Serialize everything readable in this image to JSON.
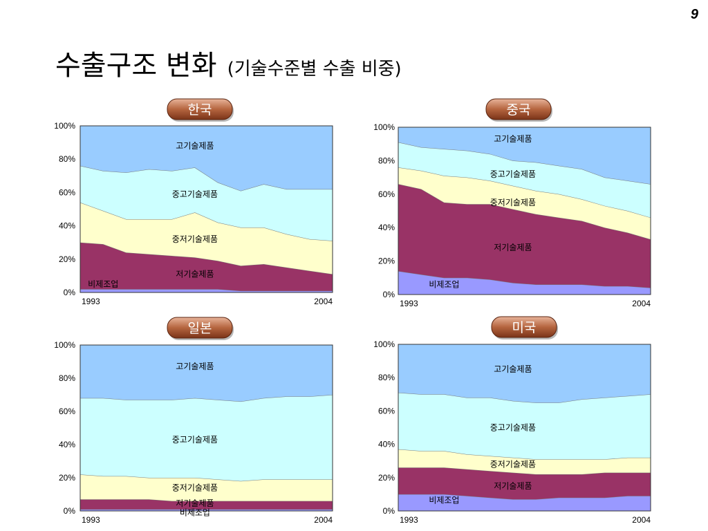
{
  "page_number": "9",
  "title": "수출구조 변화",
  "subtitle": "(기술수준별 수출 비중)",
  "colors": {
    "비제조업": "#9999ff",
    "저기술제품": "#993366",
    "중저기술제품": "#ffffcc",
    "중고기술제품": "#ccffff",
    "고기술제품": "#99ccff",
    "badge": "#a0522d"
  },
  "chart_data": [
    {
      "type": "area",
      "country": "한국",
      "stacked": true,
      "x": [
        1993,
        1994,
        1995,
        1996,
        1997,
        1998,
        1999,
        2000,
        2001,
        2002,
        2003,
        2004
      ],
      "x_tick_labels": [
        "1993",
        "2004"
      ],
      "y_tick_labels": [
        "0%",
        "20%",
        "40%",
        "60%",
        "80%",
        "100%"
      ],
      "ylim": [
        0,
        100
      ],
      "series": [
        {
          "name": "비제조업",
          "values": [
            2,
            2,
            2,
            2,
            2,
            2,
            2,
            1,
            1,
            1,
            1,
            1
          ]
        },
        {
          "name": "저기술제품",
          "values": [
            28,
            27,
            22,
            21,
            20,
            19,
            17,
            15,
            16,
            14,
            12,
            10
          ]
        },
        {
          "name": "중저기술제품",
          "values": [
            24,
            20,
            20,
            21,
            22,
            27,
            23,
            23,
            22,
            20,
            19,
            20
          ]
        },
        {
          "name": "중고기술제품",
          "values": [
            22,
            24,
            28,
            30,
            29,
            27,
            24,
            22,
            26,
            27,
            30,
            31
          ]
        },
        {
          "name": "고기술제품",
          "values": [
            24,
            27,
            28,
            26,
            27,
            25,
            34,
            39,
            35,
            38,
            38,
            38
          ]
        }
      ],
      "labels": [
        {
          "series": "고기술제품",
          "x": 1998,
          "y": 88
        },
        {
          "series": "중고기술제품",
          "x": 1998,
          "y": 59
        },
        {
          "series": "중저기술제품",
          "x": 1998,
          "y": 32
        },
        {
          "series": "저기술제품",
          "x": 1998,
          "y": 11
        },
        {
          "series": "비제조업",
          "x": 1994,
          "y": 5
        }
      ]
    },
    {
      "type": "area",
      "country": "중국",
      "stacked": true,
      "x": [
        1993,
        1994,
        1995,
        1996,
        1997,
        1998,
        1999,
        2000,
        2001,
        2002,
        2003,
        2004
      ],
      "x_tick_labels": [
        "1993",
        "2004"
      ],
      "y_tick_labels": [
        "0%",
        "20%",
        "40%",
        "60%",
        "80%",
        "100%"
      ],
      "ylim": [
        0,
        100
      ],
      "series": [
        {
          "name": "비제조업",
          "values": [
            14,
            12,
            10,
            10,
            9,
            7,
            6,
            6,
            6,
            5,
            5,
            4
          ]
        },
        {
          "name": "저기술제품",
          "values": [
            52,
            51,
            45,
            44,
            45,
            44,
            42,
            40,
            38,
            35,
            32,
            29
          ]
        },
        {
          "name": "중저기술제품",
          "values": [
            10,
            11,
            16,
            16,
            14,
            14,
            14,
            14,
            13,
            13,
            13,
            13
          ]
        },
        {
          "name": "중고기술제품",
          "values": [
            15,
            14,
            16,
            16,
            16,
            15,
            17,
            17,
            18,
            17,
            18,
            20
          ]
        },
        {
          "name": "고기술제품",
          "values": [
            9,
            12,
            13,
            14,
            16,
            20,
            21,
            23,
            25,
            30,
            32,
            34
          ]
        }
      ],
      "labels": [
        {
          "series": "고기술제품",
          "x": 1998,
          "y": 93
        },
        {
          "series": "중고기술제품",
          "x": 1998,
          "y": 72
        },
        {
          "series": "중저기술제품",
          "x": 1998,
          "y": 55
        },
        {
          "series": "저기술제품",
          "x": 1998,
          "y": 28
        },
        {
          "series": "비제조업",
          "x": 1995,
          "y": 6
        }
      ]
    },
    {
      "type": "area",
      "country": "일본",
      "stacked": true,
      "x": [
        1993,
        1994,
        1995,
        1996,
        1997,
        1998,
        1999,
        2000,
        2001,
        2002,
        2003,
        2004
      ],
      "x_tick_labels": [
        "1993",
        "2004"
      ],
      "y_tick_labels": [
        "0%",
        "20%",
        "40%",
        "60%",
        "80%",
        "100%"
      ],
      "ylim": [
        0,
        100
      ],
      "series": [
        {
          "name": "비제조업",
          "values": [
            1,
            1,
            1,
            1,
            1,
            1,
            1,
            1,
            1,
            1,
            1,
            1
          ]
        },
        {
          "name": "저기술제품",
          "values": [
            6,
            6,
            6,
            6,
            5,
            5,
            5,
            5,
            5,
            5,
            5,
            5
          ]
        },
        {
          "name": "중저기술제품",
          "values": [
            15,
            14,
            14,
            13,
            14,
            14,
            13,
            12,
            13,
            13,
            13,
            13
          ]
        },
        {
          "name": "중고기술제품",
          "values": [
            46,
            47,
            46,
            47,
            47,
            48,
            48,
            48,
            49,
            50,
            50,
            51
          ]
        },
        {
          "name": "고기술제품",
          "values": [
            32,
            32,
            33,
            33,
            33,
            32,
            33,
            34,
            32,
            31,
            31,
            30
          ]
        }
      ],
      "labels": [
        {
          "series": "고기술제품",
          "x": 1998,
          "y": 87
        },
        {
          "series": "중고기술제품",
          "x": 1998,
          "y": 43
        },
        {
          "series": "중저기술제품",
          "x": 1998,
          "y": 14
        },
        {
          "series": "저기술제품",
          "x": 1998,
          "y": 4.5
        },
        {
          "series": "비제조업",
          "x": 1998,
          "y": -1
        }
      ]
    },
    {
      "type": "area",
      "country": "미국",
      "stacked": true,
      "x": [
        1993,
        1994,
        1995,
        1996,
        1997,
        1998,
        1999,
        2000,
        2001,
        2002,
        2003,
        2004
      ],
      "x_tick_labels": [
        "1993",
        "2004"
      ],
      "y_tick_labels": [
        "0%",
        "20%",
        "40%",
        "60%",
        "80%",
        "100%"
      ],
      "ylim": [
        0,
        100
      ],
      "series": [
        {
          "name": "비제조업",
          "values": [
            10,
            10,
            10,
            9,
            8,
            7,
            7,
            8,
            8,
            8,
            9,
            9
          ]
        },
        {
          "name": "저기술제품",
          "values": [
            16,
            16,
            16,
            16,
            16,
            16,
            15,
            14,
            14,
            15,
            14,
            14
          ]
        },
        {
          "name": "중저기술제품",
          "values": [
            11,
            10,
            10,
            9,
            9,
            9,
            9,
            9,
            9,
            8,
            9,
            9
          ]
        },
        {
          "name": "중고기술제품",
          "values": [
            34,
            34,
            34,
            34,
            35,
            34,
            34,
            34,
            36,
            37,
            37,
            38
          ]
        },
        {
          "name": "고기술제품",
          "values": [
            29,
            30,
            30,
            32,
            32,
            34,
            35,
            35,
            33,
            32,
            31,
            30
          ]
        }
      ],
      "labels": [
        {
          "series": "고기술제품",
          "x": 1998,
          "y": 85
        },
        {
          "series": "중고기술제품",
          "x": 1998,
          "y": 50
        },
        {
          "series": "중저기술제품",
          "x": 1998,
          "y": 28
        },
        {
          "series": "저기술제품",
          "x": 1998,
          "y": 15
        },
        {
          "series": "비제조업",
          "x": 1995,
          "y": 6.5
        }
      ]
    }
  ]
}
